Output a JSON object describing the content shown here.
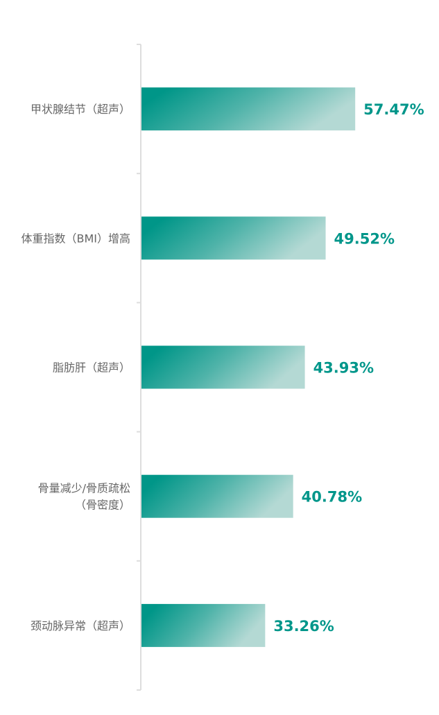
{
  "chart_data": {
    "type": "bar",
    "orientation": "horizontal",
    "categories": [
      [
        "甲状腺结节（超声）"
      ],
      [
        "体重指数（BMI）增高"
      ],
      [
        "脂肪肝（超声）"
      ],
      [
        "骨量减少/骨质疏松",
        "（骨密度）"
      ],
      [
        "颈动脉异常（超声）"
      ]
    ],
    "values": [
      57.47,
      49.52,
      43.93,
      40.78,
      33.26
    ],
    "value_labels": [
      "57.47%",
      "49.52%",
      "43.93%",
      "40.78%",
      "33.26%"
    ],
    "unit": "%",
    "xlim": [
      0,
      80
    ],
    "grid": false,
    "colors": {
      "bar_start": "#009688",
      "bar_end": "#b2d8d3",
      "value_text": "#00968a",
      "axis": "#dddddd",
      "label": "#666666"
    }
  }
}
